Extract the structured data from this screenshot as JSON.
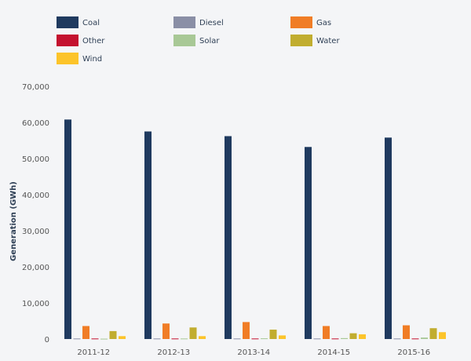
{
  "chart_data": {
    "type": "bar",
    "title": "",
    "xlabel": "",
    "ylabel": "Generation (GWh)",
    "ylim": [
      0,
      70000
    ],
    "yticks": [
      0,
      10000,
      20000,
      30000,
      40000,
      50000,
      60000,
      70000
    ],
    "ytick_labels": [
      "0",
      "10,000",
      "20,000",
      "30,000",
      "40,000",
      "50,000",
      "60,000",
      "70,000"
    ],
    "categories": [
      "2011-12",
      "2012-13",
      "2013-14",
      "2014-15",
      "2015-16"
    ],
    "grid": false,
    "legend_position": "top-left",
    "series": [
      {
        "name": "Coal",
        "color": "#1f3a5f",
        "values": [
          60800,
          57500,
          56200,
          53200,
          55800
        ]
      },
      {
        "name": "Diesel",
        "color": "#8a8fa6",
        "values": [
          150,
          150,
          150,
          150,
          150
        ]
      },
      {
        "name": "Gas",
        "color": "#f07d26",
        "values": [
          3600,
          4300,
          4700,
          3600,
          3800
        ]
      },
      {
        "name": "Other",
        "color": "#c4122f",
        "values": [
          150,
          150,
          150,
          150,
          150
        ]
      },
      {
        "name": "Solar",
        "color": "#a8c896",
        "values": [
          100,
          150,
          200,
          250,
          400
        ]
      },
      {
        "name": "Water",
        "color": "#c1ad2f",
        "values": [
          2200,
          3200,
          2600,
          1600,
          3000
        ]
      },
      {
        "name": "Wind",
        "color": "#fcc42a",
        "values": [
          800,
          800,
          1000,
          1300,
          1900
        ]
      }
    ]
  }
}
